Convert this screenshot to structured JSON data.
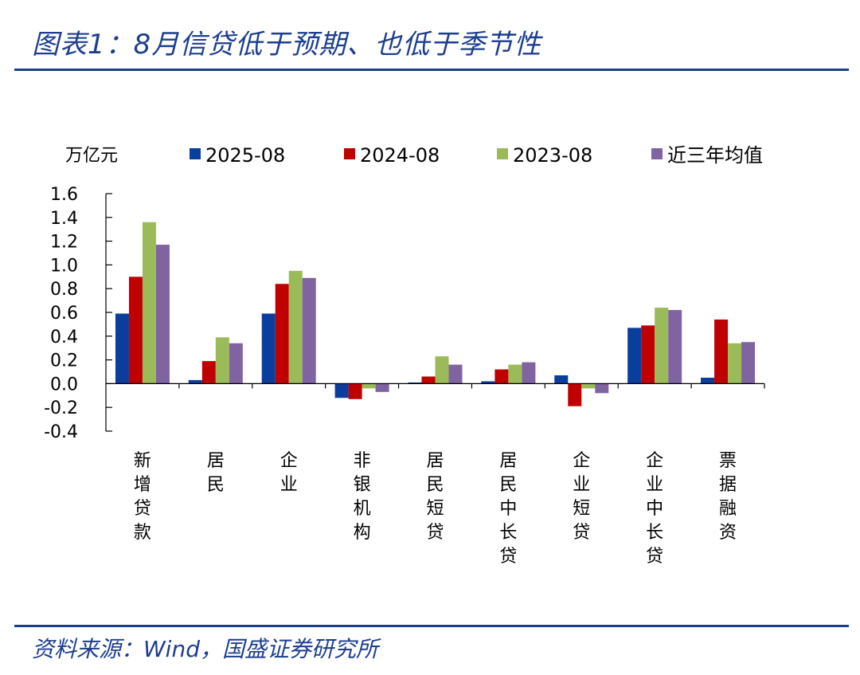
{
  "title": "图表1：8月信贷低于预期、也低于季节性",
  "source": "资料来源：Wind，国盛证券研究所",
  "chart_data": {
    "type": "bar",
    "unit_label": "万亿元",
    "categories": [
      "新增贷款",
      "居民",
      "企业",
      "非银机构",
      "居民短贷",
      "居民中长贷",
      "企业短贷",
      "企业中长贷",
      "票据融资"
    ],
    "series": [
      {
        "name": "2025-08",
        "color": "#0a3d9c",
        "values": [
          0.59,
          0.03,
          0.59,
          -0.12,
          0.01,
          0.02,
          0.07,
          0.47,
          0.05
        ]
      },
      {
        "name": "2024-08",
        "color": "#c00000",
        "values": [
          0.9,
          0.19,
          0.84,
          -0.13,
          0.06,
          0.12,
          -0.19,
          0.49,
          0.54
        ]
      },
      {
        "name": "2023-08",
        "color": "#9bbb59",
        "values": [
          1.36,
          0.39,
          0.95,
          -0.04,
          0.23,
          0.16,
          -0.04,
          0.64,
          0.34
        ]
      },
      {
        "name": "近三年均值",
        "color": "#8064a2",
        "values": [
          1.17,
          0.34,
          0.89,
          -0.07,
          0.16,
          0.18,
          -0.08,
          0.62,
          0.35
        ]
      }
    ],
    "y_ticks": [
      "1.6",
      "1.4",
      "1.2",
      "1.0",
      "0.8",
      "0.6",
      "0.4",
      "0.2",
      "0.0",
      "-0.2",
      "-0.4"
    ],
    "ylim": [
      -0.4,
      1.6
    ],
    "legend_position": "top",
    "grid": false
  }
}
